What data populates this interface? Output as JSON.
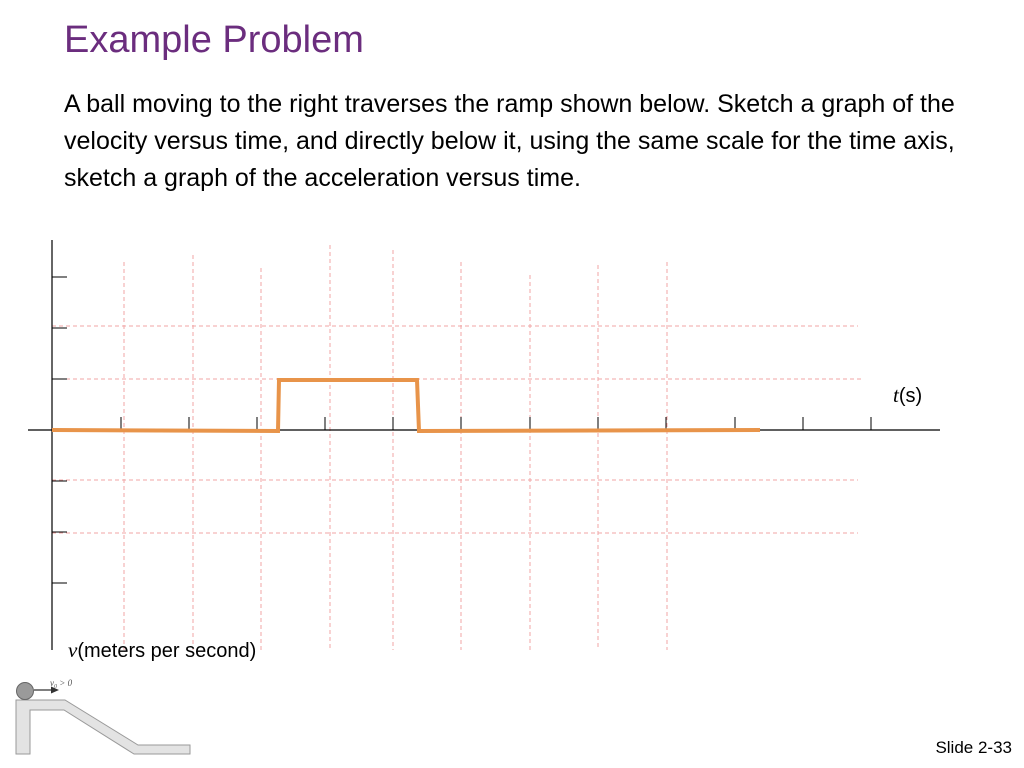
{
  "slide": {
    "title": "Example Problem",
    "problem_text": "A ball moving to the right traverses the ramp shown below. Sketch a graph of the velocity versus time, and directly below it, using the same scale for the time axis, sketch a graph of the acceleration versus time.",
    "slide_number": "Slide 2-33"
  },
  "graph": {
    "x_axis_var": "t",
    "x_axis_unit": "(s)",
    "y_axis_var": "v",
    "y_axis_unit": "(meters per second)",
    "curve_color": "#e8944a",
    "grid_color": "#f0a5a5"
  },
  "ramp_figure": {
    "initial_velocity_var": "v",
    "initial_velocity_subscript": "0",
    "initial_velocity_condition": " > 0"
  },
  "colors": {
    "title": "#6b2d7e",
    "text": "#000000",
    "axis": "#000000"
  }
}
